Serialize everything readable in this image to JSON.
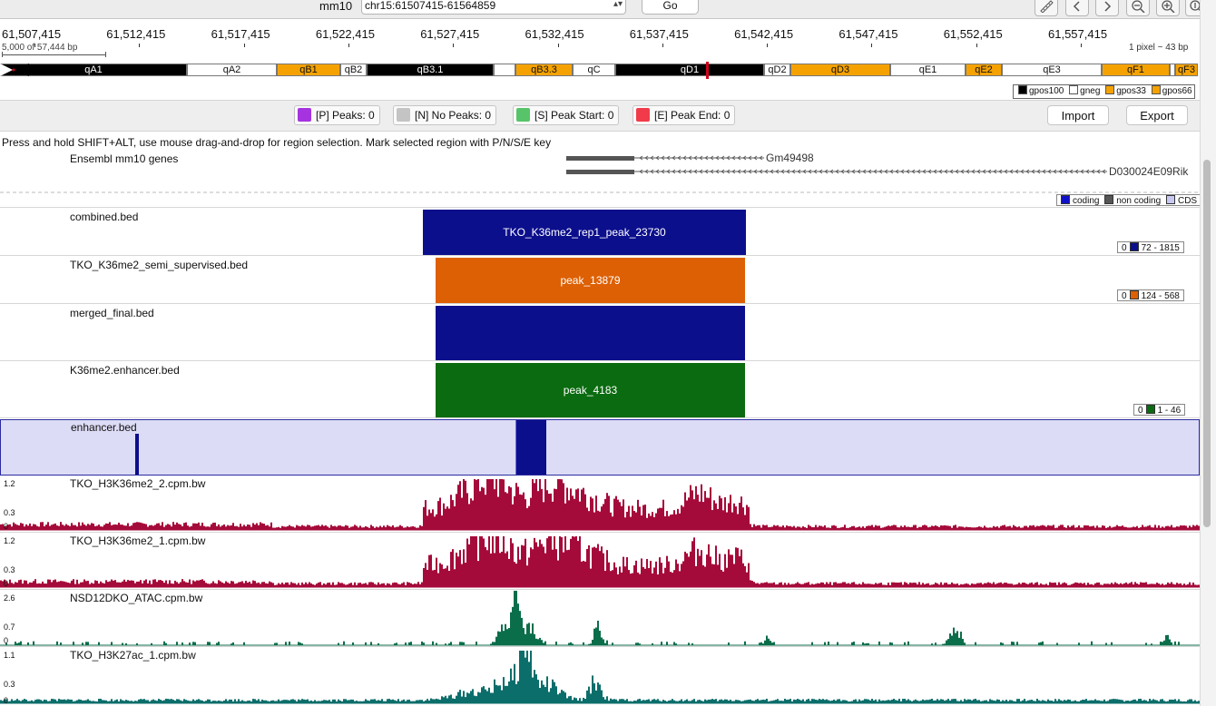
{
  "header": {
    "genome": "mm10",
    "locus": "chr15:61507415-61564859",
    "go_label": "Go",
    "tool_icons": [
      "ruler-icon",
      "back-icon",
      "forward-icon",
      "zoom-out-icon",
      "zoom-in-icon",
      "info-icon"
    ]
  },
  "ruler": {
    "ticks": [
      "61,507,415",
      "61,512,415",
      "61,517,415",
      "61,522,415",
      "61,527,415",
      "61,532,415",
      "61,537,415",
      "61,542,415",
      "61,547,415",
      "61,552,415",
      "61,557,415"
    ],
    "extent": "5,000 of 57,444 bp",
    "pixel_scale": "1 pixel ~ 43 bp"
  },
  "ideogram": {
    "bands": [
      {
        "name": "qA1",
        "stain": "gpos100"
      },
      {
        "name": "qA2",
        "stain": "gneg"
      },
      {
        "name": "qB1",
        "stain": "gpos33"
      },
      {
        "name": "qB2",
        "stain": "gneg"
      },
      {
        "name": "qB3.1",
        "stain": "gpos100"
      },
      {
        "name": "",
        "stain": "gneg"
      },
      {
        "name": "qB3.3",
        "stain": "gpos33"
      },
      {
        "name": "qC",
        "stain": "gneg"
      },
      {
        "name": "qD1",
        "stain": "gpos100"
      },
      {
        "name": "qD2",
        "stain": "gneg"
      },
      {
        "name": "qD3",
        "stain": "gpos33"
      },
      {
        "name": "qE1",
        "stain": "gneg"
      },
      {
        "name": "qE2",
        "stain": "gpos33"
      },
      {
        "name": "qE3",
        "stain": "gneg"
      },
      {
        "name": "qF1",
        "stain": "gpos33"
      },
      {
        "name": "",
        "stain": "gneg"
      },
      {
        "name": "qF3",
        "stain": "gpos33"
      }
    ],
    "legend": [
      "gpos100",
      "gneg",
      "gpos33",
      "gpos66"
    ],
    "stain_colors": {
      "gpos100": "#000000",
      "gneg": "#ffffff",
      "gpos33": "#f5a200",
      "gpos66": "#f5a200"
    }
  },
  "peaks": {
    "peaks_label": "[P] Peaks: 0",
    "no_peaks_label": "[N] No Peaks: 0",
    "peak_start_label": "[S] Peak Start: 0",
    "peak_end_label": "[E] Peak End: 0",
    "import_label": "Import",
    "export_label": "Export",
    "colors": {
      "peaks": "#a534e0",
      "no_peaks": "#c4c4c4",
      "peak_start": "#58c46a",
      "peak_end": "#f23b4a"
    }
  },
  "instruction": "Press and hold SHIFT+ALT, use mouse drag-and-drop for region selection. Mark selected region with P/N/S/E key",
  "tracks": {
    "genes": {
      "label": "Ensembl mm10 genes",
      "gene1": "Gm49498",
      "gene2": "D030024E09Rik",
      "legend": {
        "coding": "coding",
        "non_coding": "non coding",
        "cds": "CDS"
      }
    },
    "combined": {
      "label": "combined.bed",
      "block_text": "TKO_K36me2_rep1_peak_23730",
      "color": "#0c0f8c",
      "legend_min": "0",
      "legend_range": "72 - 1815"
    },
    "semi": {
      "label": "TKO_K36me2_semi_supervised.bed",
      "block_text": "peak_13879",
      "color": "#dd6004",
      "legend_min": "0",
      "legend_range": "124 - 568"
    },
    "merged": {
      "label": "merged_final.bed",
      "block_text": "",
      "color": "#0c0f8c"
    },
    "enhancer_k36": {
      "label": "K36me2.enhancer.bed",
      "block_text": "peak_4183",
      "color": "#0b6b10",
      "legend_min": "0",
      "legend_range": "1 - 46"
    },
    "enhancer": {
      "label": "enhancer.bed",
      "color": "#0c0f8c",
      "bg": "#dcdcf6"
    },
    "bw1": {
      "label": "TKO_H3K36me2_2.cpm.bw",
      "ymax": "1.2",
      "ymid": "0.3",
      "ymin": "0",
      "color": "#a50b3a"
    },
    "bw2": {
      "label": "TKO_H3K36me2_1.cpm.bw",
      "ymax": "1.2",
      "ymid": "0.3",
      "ymin": "0",
      "color": "#a50b3a"
    },
    "bw3": {
      "label": "NSD12DKO_ATAC.cpm.bw",
      "ymax": "2.6",
      "ymid": "0.7",
      "ymin": "0",
      "color": "#0b6e4a"
    },
    "bw4": {
      "label": "TKO_H3K27ac_1.cpm.bw",
      "ymax": "1.1",
      "ymid": "0.3",
      "ymin": "0",
      "color": "#0c6e6b"
    }
  }
}
